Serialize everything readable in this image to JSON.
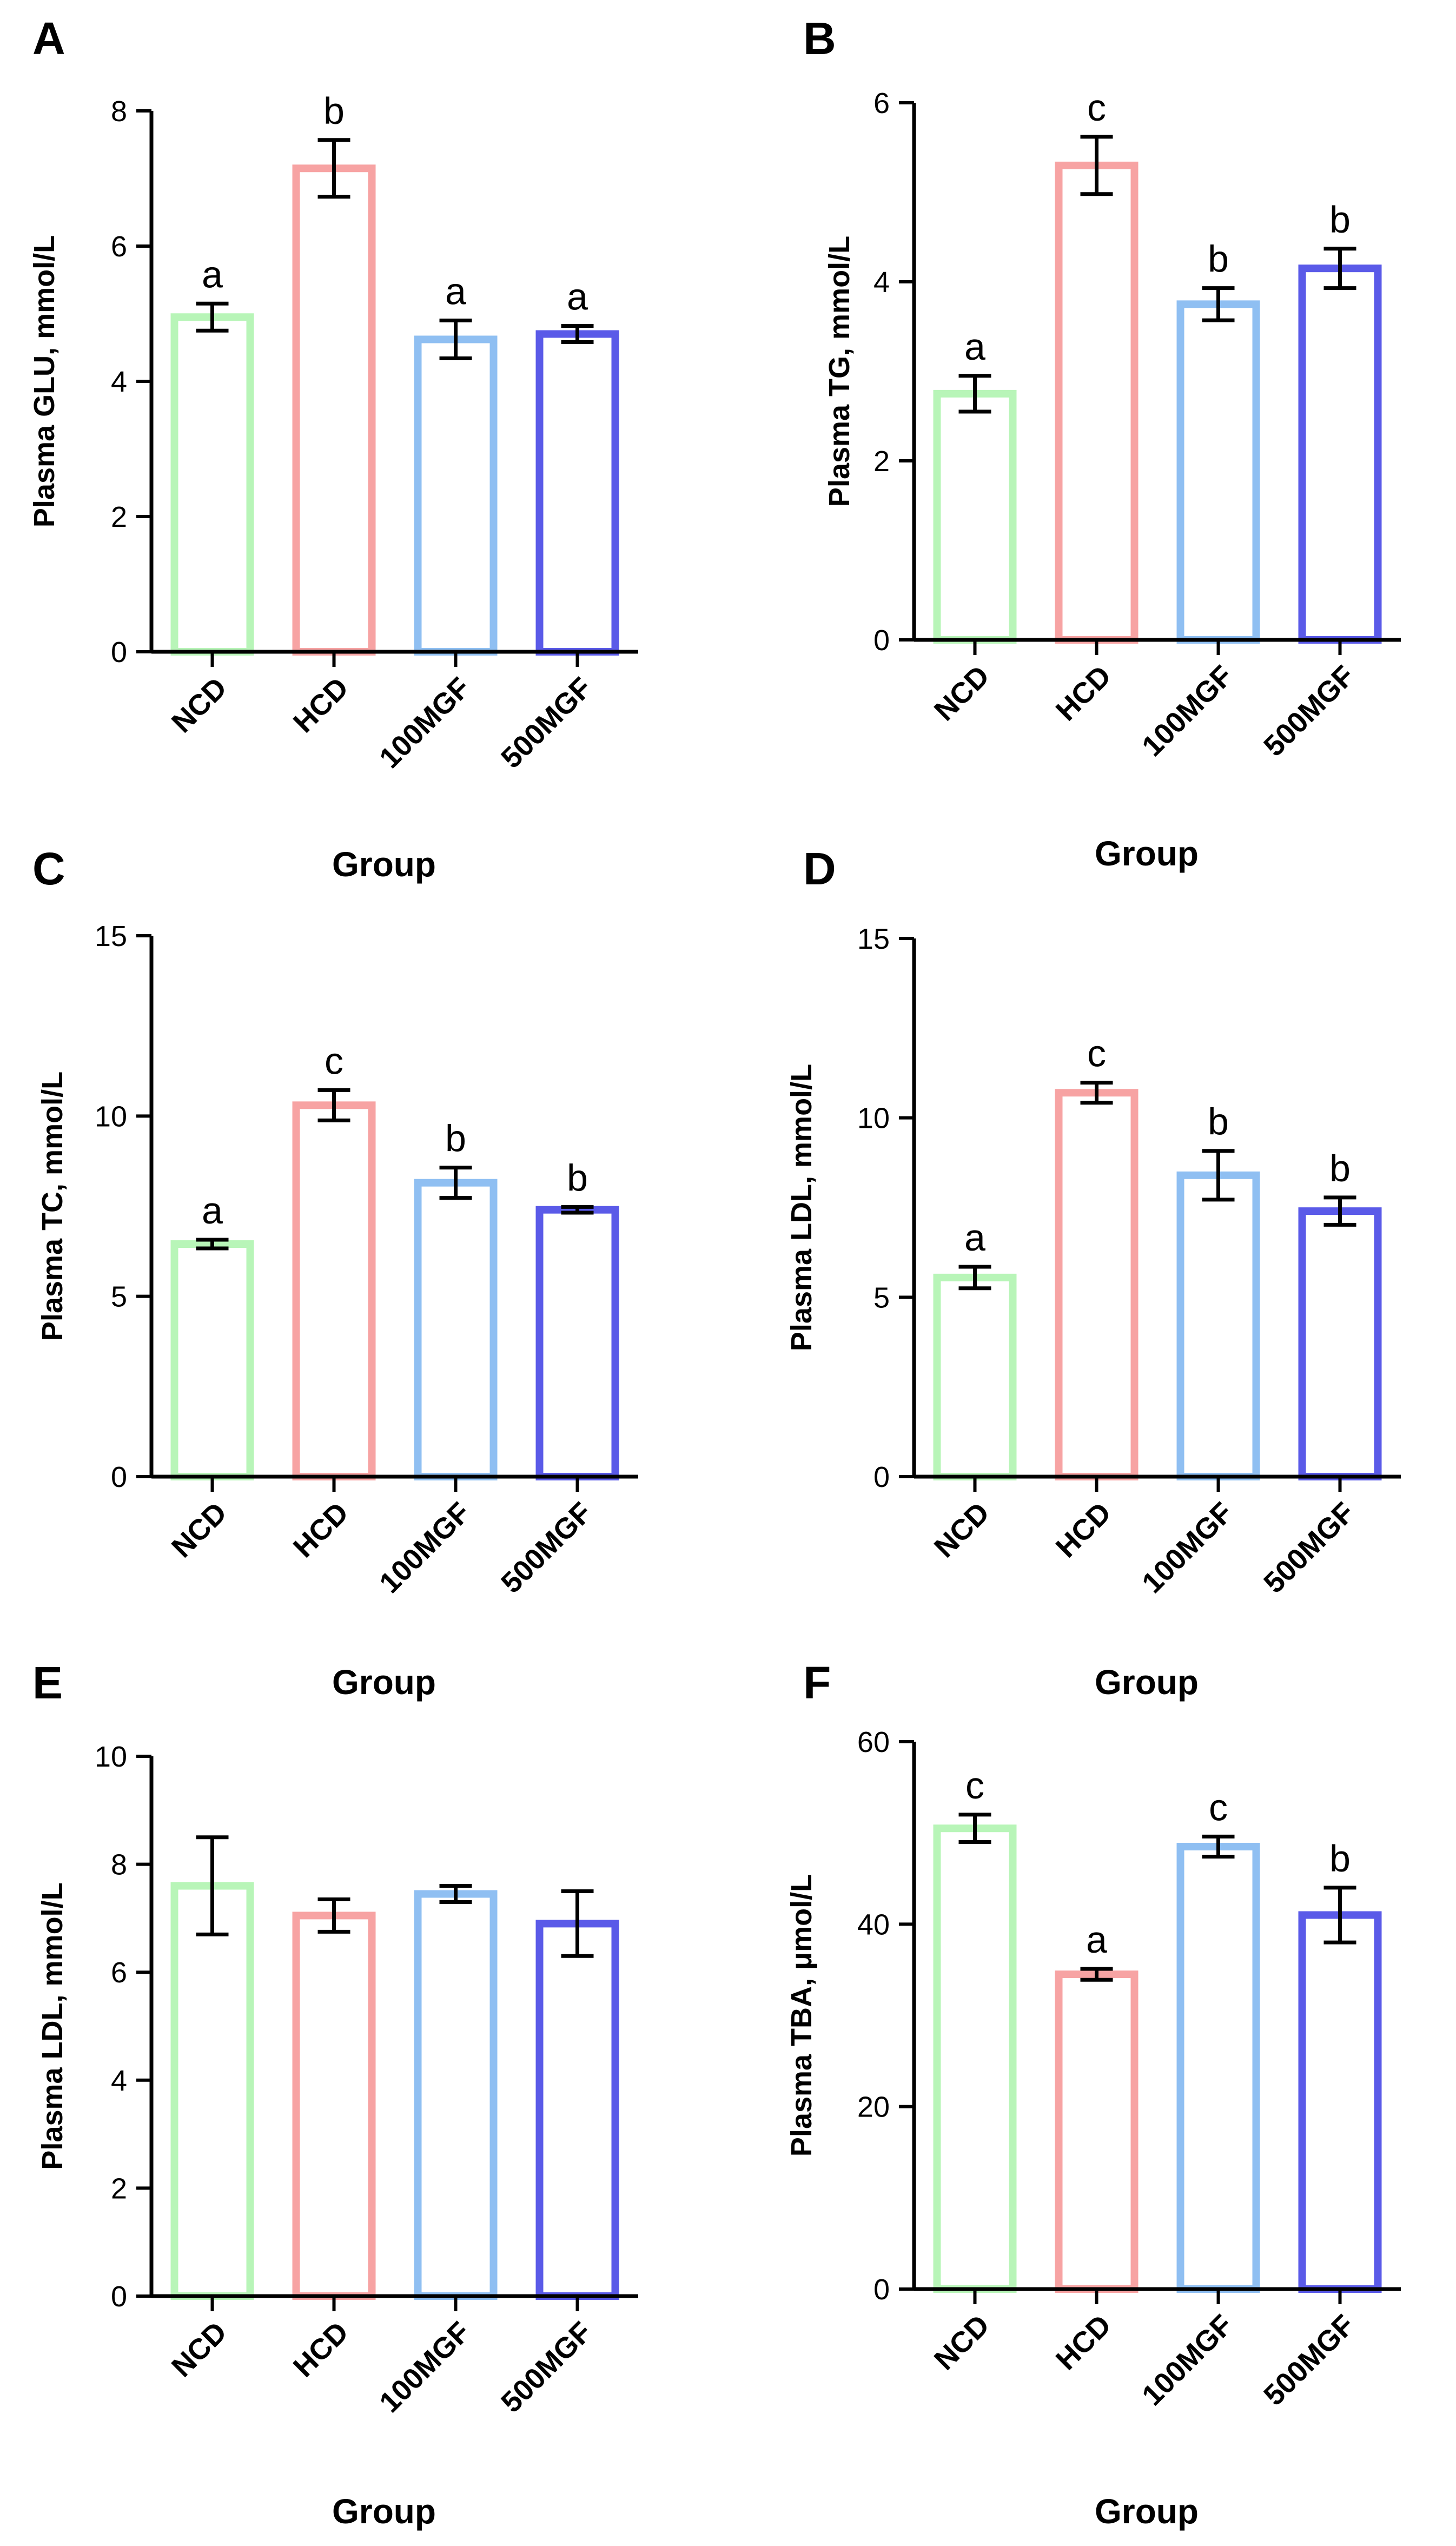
{
  "figure": {
    "x_axis_title": "Group",
    "group_colors": {
      "NCD": "#b8f5b8",
      "HCD": "#f7a3a3",
      "100MGF": "#8fbff2",
      "500MGF": "#5a5ae8"
    }
  },
  "chart_data": [
    {
      "panel": "A",
      "type": "bar",
      "categories": [
        "NCD",
        "HCD",
        "100MGF",
        "500MGF"
      ],
      "values": [
        4.95,
        7.15,
        4.62,
        4.7
      ],
      "errors": [
        0.2,
        0.42,
        0.28,
        0.12
      ],
      "letters": [
        "a",
        "b",
        "a",
        "a"
      ],
      "ylabel": "Plasma GLU, mmol/L",
      "xlabel": "Group",
      "ylim": [
        0,
        8
      ],
      "yticks": [
        0,
        2,
        4,
        6,
        8
      ],
      "ytick_labels": [
        "0",
        "2",
        "4",
        "6",
        "8"
      ]
    },
    {
      "panel": "B",
      "type": "bar",
      "categories": [
        "NCD",
        "HCD",
        "100MGF",
        "500MGF"
      ],
      "values": [
        2.75,
        5.3,
        3.75,
        4.15
      ],
      "errors": [
        0.2,
        0.32,
        0.18,
        0.22
      ],
      "letters": [
        "a",
        "c",
        "b",
        "b"
      ],
      "ylabel": "Plasma TG, mmol/L",
      "xlabel": "Group",
      "ylim": [
        0,
        6
      ],
      "yticks": [
        0,
        2,
        4,
        6
      ],
      "ytick_labels": [
        "0",
        "2",
        "4",
        "6"
      ]
    },
    {
      "panel": "C",
      "type": "bar",
      "categories": [
        "NCD",
        "HCD",
        "100MGF",
        "500MGF"
      ],
      "values": [
        6.45,
        10.3,
        8.15,
        7.4
      ],
      "errors": [
        0.12,
        0.42,
        0.42,
        0.08
      ],
      "letters": [
        "a",
        "c",
        "b",
        "b"
      ],
      "ylabel": "Plasma TC, mmol/L",
      "xlabel": "Group",
      "ylim": [
        0,
        15
      ],
      "yticks": [
        0,
        5,
        10,
        15
      ],
      "ytick_labels": [
        "0",
        "5",
        "10",
        "15"
      ]
    },
    {
      "panel": "D",
      "type": "bar",
      "categories": [
        "NCD",
        "HCD",
        "100MGF",
        "500MGF"
      ],
      "values": [
        5.55,
        10.7,
        8.4,
        7.4
      ],
      "errors": [
        0.3,
        0.28,
        0.68,
        0.38
      ],
      "letters": [
        "a",
        "c",
        "b",
        "b"
      ],
      "ylabel": "Plasma LDL, mmol/L",
      "xlabel": "Group",
      "ylim": [
        0,
        15
      ],
      "yticks": [
        0,
        5,
        10,
        15
      ],
      "ytick_labels": [
        "0",
        "5",
        "10",
        "15"
      ]
    },
    {
      "panel": "E",
      "type": "bar",
      "categories": [
        "NCD",
        "HCD",
        "100MGF",
        "500MGF"
      ],
      "values": [
        7.6,
        7.05,
        7.45,
        6.9
      ],
      "errors": [
        0.9,
        0.3,
        0.15,
        0.6
      ],
      "letters": [
        "",
        "",
        "",
        ""
      ],
      "ylabel": "Plasma LDL, mmol/L",
      "xlabel": "Group",
      "ylim": [
        0,
        10
      ],
      "yticks": [
        0,
        2,
        4,
        6,
        8,
        10
      ],
      "ytick_labels": [
        "0",
        "2",
        "4",
        "6",
        "8",
        "10"
      ]
    },
    {
      "panel": "F",
      "type": "bar",
      "categories": [
        "NCD",
        "HCD",
        "100MGF",
        "500MGF"
      ],
      "values": [
        50.5,
        34.5,
        48.5,
        41
      ],
      "errors": [
        1.5,
        0.6,
        1.1,
        3.0
      ],
      "letters": [
        "c",
        "a",
        "c",
        "b"
      ],
      "ylabel": "Plasma TBA, μmol/L",
      "xlabel": "Group",
      "ylim": [
        0,
        60
      ],
      "yticks": [
        0,
        20,
        40,
        60
      ],
      "ytick_labels": [
        "0",
        "20",
        "40",
        "60"
      ]
    }
  ]
}
